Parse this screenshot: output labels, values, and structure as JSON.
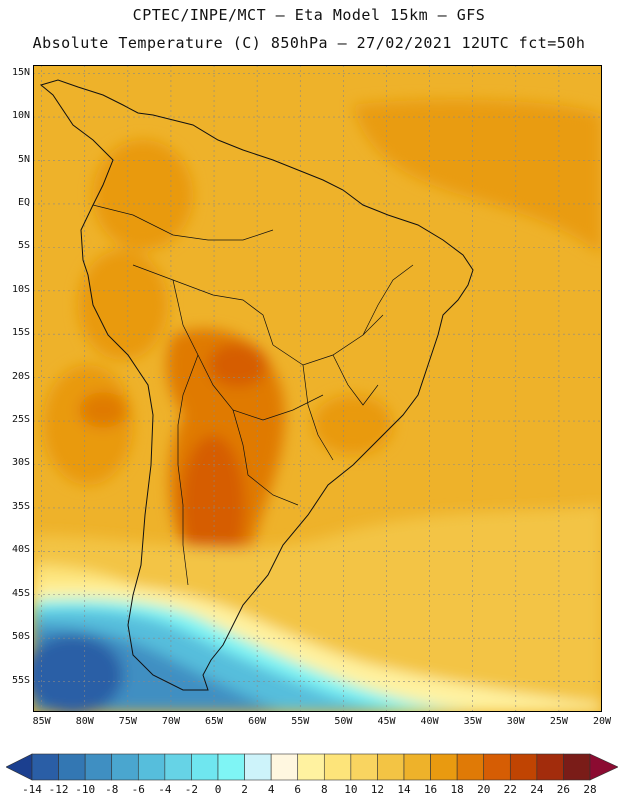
{
  "header": {
    "line1": "CPTEC/INPE/MCT –  Eta Model 15km – GFS",
    "line2": "Absolute Temperature (C) 850hPa – 27/02/2021 12UTC fct=50h"
  },
  "map": {
    "lon_range": [
      -86,
      -20
    ],
    "lat_range": [
      -58.5,
      16
    ],
    "lat_ticks": [
      {
        "lat": 15,
        "label": "15N"
      },
      {
        "lat": 10,
        "label": "10N"
      },
      {
        "lat": 5,
        "label": "5N"
      },
      {
        "lat": 0,
        "label": "EQ"
      },
      {
        "lat": -5,
        "label": "5S"
      },
      {
        "lat": -10,
        "label": "10S"
      },
      {
        "lat": -15,
        "label": "15S"
      },
      {
        "lat": -20,
        "label": "20S"
      },
      {
        "lat": -25,
        "label": "25S"
      },
      {
        "lat": -30,
        "label": "30S"
      },
      {
        "lat": -35,
        "label": "35S"
      },
      {
        "lat": -40,
        "label": "40S"
      },
      {
        "lat": -45,
        "label": "45S"
      },
      {
        "lat": -50,
        "label": "50S"
      },
      {
        "lat": -55,
        "label": "55S"
      }
    ],
    "lon_ticks": [
      {
        "lon": -85,
        "label": "85W"
      },
      {
        "lon": -80,
        "label": "80W"
      },
      {
        "lon": -75,
        "label": "75W"
      },
      {
        "lon": -70,
        "label": "70W"
      },
      {
        "lon": -65,
        "label": "65W"
      },
      {
        "lon": -60,
        "label": "60W"
      },
      {
        "lon": -55,
        "label": "55W"
      },
      {
        "lon": -50,
        "label": "50W"
      },
      {
        "lon": -45,
        "label": "45W"
      },
      {
        "lon": -40,
        "label": "40W"
      },
      {
        "lon": -35,
        "label": "35W"
      },
      {
        "lon": -30,
        "label": "30W"
      },
      {
        "lon": -25,
        "label": "25W"
      },
      {
        "lon": -20,
        "label": "20W"
      }
    ],
    "grid": "dotted"
  },
  "colorbar": {
    "labels": [
      "-14",
      "-12",
      "-10",
      "-8",
      "-6",
      "-4",
      "-2",
      "0",
      "2",
      "4",
      "6",
      "8",
      "10",
      "12",
      "14",
      "16",
      "18",
      "20",
      "22",
      "24",
      "26",
      "28"
    ],
    "colors": [
      "#1b3f8f",
      "#2a5ea6",
      "#3377b3",
      "#3f8fc2",
      "#4aa6cf",
      "#56bedc",
      "#66d3e6",
      "#6fe6ef",
      "#7ff5f5",
      "#cdf3fa",
      "#fff7e0",
      "#fff2a0",
      "#fde47a",
      "#f9d460",
      "#f3c444",
      "#eeb22a",
      "#e99a10",
      "#e07a06",
      "#d65d04",
      "#c04402",
      "#a22c0c",
      "#7a1c18",
      "#8b0b31"
    ]
  }
}
